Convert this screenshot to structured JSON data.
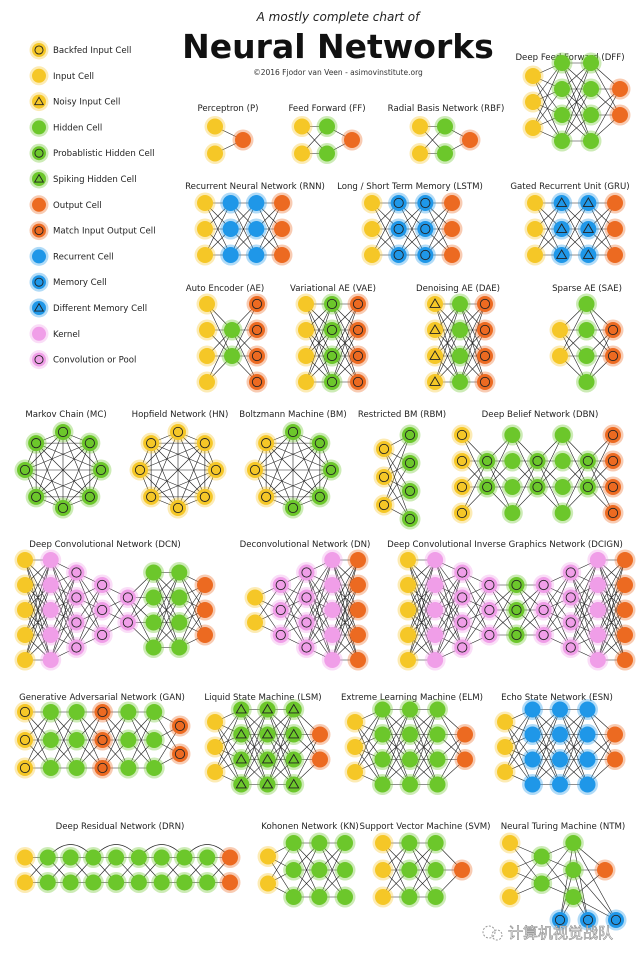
{
  "header": {
    "subtitle": "A mostly complete chart of",
    "title": "Neural Networks",
    "credit": "©2016 Fjodor van Veen - asimovinstitute.org"
  },
  "cell_colors": {
    "yellow": "#f5c727",
    "green": "#6cc72b",
    "orange": "#ec6a21",
    "blue": "#1f97e8",
    "pink": "#f09ee8",
    "edge": "#222222"
  },
  "legend": [
    {
      "label": "Backfed Input Cell",
      "type": "bi"
    },
    {
      "label": "Input Cell",
      "type": "in"
    },
    {
      "label": "Noisy Input Cell",
      "type": "ni"
    },
    {
      "label": "Hidden Cell",
      "type": "h"
    },
    {
      "label": "Probablistic Hidden Cell",
      "type": "ph"
    },
    {
      "label": "Spiking Hidden Cell",
      "type": "sh"
    },
    {
      "label": "Output Cell",
      "type": "o"
    },
    {
      "label": "Match Input Output Cell",
      "type": "mo"
    },
    {
      "label": "Recurrent Cell",
      "type": "r"
    },
    {
      "label": "Memory Cell",
      "type": "m"
    },
    {
      "label": "Different Memory Cell",
      "type": "dm"
    },
    {
      "label": "Kernel",
      "type": "k"
    },
    {
      "label": "Convolution or Pool",
      "type": "c"
    }
  ],
  "networks": [
    {
      "id": "p",
      "name": "Perceptron (P)",
      "layers": [
        [
          "in",
          "in"
        ],
        [
          "o"
        ]
      ]
    },
    {
      "id": "ff",
      "name": "Feed Forward (FF)",
      "layers": [
        [
          "in",
          "in"
        ],
        [
          "h",
          "h"
        ],
        [
          "o"
        ]
      ]
    },
    {
      "id": "rbf",
      "name": "Radial Basis Network (RBF)",
      "layers": [
        [
          "in",
          "in"
        ],
        [
          "h",
          "h"
        ],
        [
          "o"
        ]
      ]
    },
    {
      "id": "dff",
      "name": "Deep Feed Forward (DFF)",
      "layers": [
        [
          "in",
          "in",
          "in"
        ],
        [
          "h",
          "h",
          "h",
          "h"
        ],
        [
          "h",
          "h",
          "h",
          "h"
        ],
        [
          "o",
          "o"
        ]
      ]
    },
    {
      "id": "rnn",
      "name": "Recurrent Neural Network (RNN)",
      "layers": [
        [
          "in",
          "in",
          "in"
        ],
        [
          "r",
          "r",
          "r"
        ],
        [
          "r",
          "r",
          "r"
        ],
        [
          "o",
          "o",
          "o"
        ]
      ]
    },
    {
      "id": "lstm",
      "name": "Long / Short Term Memory (LSTM)",
      "layers": [
        [
          "in",
          "in",
          "in"
        ],
        [
          "m",
          "m",
          "m"
        ],
        [
          "m",
          "m",
          "m"
        ],
        [
          "o",
          "o",
          "o"
        ]
      ]
    },
    {
      "id": "gru",
      "name": "Gated Recurrent Unit (GRU)",
      "layers": [
        [
          "in",
          "in",
          "in"
        ],
        [
          "dm",
          "dm",
          "dm"
        ],
        [
          "dm",
          "dm",
          "dm"
        ],
        [
          "o",
          "o",
          "o"
        ]
      ]
    },
    {
      "id": "ae",
      "name": "Auto Encoder (AE)",
      "layers": [
        [
          "in",
          "in",
          "in",
          "in"
        ],
        [
          "h",
          "h"
        ],
        [
          "mo",
          "mo",
          "mo",
          "mo"
        ]
      ]
    },
    {
      "id": "vae",
      "name": "Variational AE (VAE)",
      "layers": [
        [
          "in",
          "in",
          "in",
          "in"
        ],
        [
          "ph",
          "ph",
          "ph",
          "ph"
        ],
        [
          "mo",
          "mo",
          "mo",
          "mo"
        ]
      ]
    },
    {
      "id": "dae",
      "name": "Denoising AE (DAE)",
      "layers": [
        [
          "ni",
          "ni",
          "ni",
          "ni"
        ],
        [
          "h",
          "h",
          "h",
          "h"
        ],
        [
          "mo",
          "mo",
          "mo",
          "mo"
        ]
      ]
    },
    {
      "id": "sae",
      "name": "Sparse AE (SAE)",
      "layers": [
        [
          "in",
          "in"
        ],
        [
          "h",
          "h",
          "h",
          "h"
        ],
        [
          "mo",
          "mo"
        ]
      ]
    },
    {
      "id": "mc",
      "name": "Markov Chain (MC)",
      "ring": [
        "ph",
        "ph",
        "ph",
        "ph",
        "ph",
        "ph",
        "ph",
        "ph"
      ]
    },
    {
      "id": "hn",
      "name": "Hopfield Network (HN)",
      "ring": [
        "bi",
        "bi",
        "bi",
        "bi",
        "bi",
        "bi",
        "bi",
        "bi"
      ]
    },
    {
      "id": "bm",
      "name": "Boltzmann Machine (BM)",
      "ring": [
        "ph",
        "ph",
        "ph",
        "ph",
        "ph",
        "bi",
        "bi",
        "bi"
      ]
    },
    {
      "id": "rbm",
      "name": "Restricted BM (RBM)",
      "layers": [
        [
          "bi",
          "bi",
          "bi"
        ],
        [
          "ph",
          "ph",
          "ph",
          "ph"
        ]
      ]
    },
    {
      "id": "dbn",
      "name": "Deep Belief Network (DBN)",
      "layers": [
        [
          "bi",
          "bi",
          "bi",
          "bi"
        ],
        [
          "ph",
          "ph"
        ],
        [
          "h",
          "h",
          "h",
          "h"
        ],
        [
          "ph",
          "ph"
        ],
        [
          "h",
          "h",
          "h",
          "h"
        ],
        [
          "ph",
          "ph"
        ],
        [
          "mo",
          "mo",
          "mo",
          "mo"
        ]
      ]
    },
    {
      "id": "dcn",
      "name": "Deep Convolutional Network (DCN)",
      "layers": [
        [
          "in",
          "in",
          "in",
          "in",
          "in"
        ],
        [
          "k",
          "k",
          "k",
          "k",
          "k"
        ],
        [
          "c",
          "c",
          "c",
          "c"
        ],
        [
          "c",
          "c",
          "c"
        ],
        [
          "c",
          "c"
        ],
        [
          "h",
          "h",
          "h",
          "h"
        ],
        [
          "h",
          "h",
          "h",
          "h"
        ],
        [
          "o",
          "o",
          "o"
        ]
      ]
    },
    {
      "id": "dn",
      "name": "Deconvolutional Network (DN)",
      "layers": [
        [
          "in",
          "in"
        ],
        [
          "c",
          "c",
          "c"
        ],
        [
          "c",
          "c",
          "c",
          "c"
        ],
        [
          "k",
          "k",
          "k",
          "k",
          "k"
        ],
        [
          "o",
          "o",
          "o",
          "o",
          "o"
        ]
      ]
    },
    {
      "id": "dcign",
      "name": "Deep Convolutional Inverse Graphics Network (DCIGN)",
      "layers": [
        [
          "in",
          "in",
          "in",
          "in",
          "in"
        ],
        [
          "k",
          "k",
          "k",
          "k",
          "k"
        ],
        [
          "c",
          "c",
          "c",
          "c"
        ],
        [
          "c",
          "c",
          "c"
        ],
        [
          "ph",
          "ph",
          "ph"
        ],
        [
          "c",
          "c",
          "c"
        ],
        [
          "c",
          "c",
          "c",
          "c"
        ],
        [
          "k",
          "k",
          "k",
          "k",
          "k"
        ],
        [
          "o",
          "o",
          "o",
          "o",
          "o"
        ]
      ]
    },
    {
      "id": "gan",
      "name": "Generative Adversarial Network (GAN)",
      "layers": [
        [
          "bi",
          "bi",
          "bi"
        ],
        [
          "h",
          "h",
          "h"
        ],
        [
          "h",
          "h",
          "h"
        ],
        [
          "mo",
          "mo",
          "mo"
        ],
        [
          "h",
          "h",
          "h"
        ],
        [
          "h",
          "h",
          "h"
        ],
        [
          "mo",
          "mo"
        ]
      ]
    },
    {
      "id": "lsm",
      "name": "Liquid State Machine (LSM)",
      "layers": [
        [
          "in",
          "in",
          "in"
        ],
        [
          "sh",
          "sh",
          "sh",
          "sh"
        ],
        [
          "sh",
          "sh",
          "sh",
          "sh"
        ],
        [
          "sh",
          "sh",
          "sh",
          "sh"
        ],
        [
          "o",
          "o"
        ]
      ]
    },
    {
      "id": "elm",
      "name": "Extreme Learning Machine (ELM)",
      "layers": [
        [
          "in",
          "in",
          "in"
        ],
        [
          "h",
          "h",
          "h",
          "h"
        ],
        [
          "h",
          "h",
          "h",
          "h"
        ],
        [
          "h",
          "h",
          "h",
          "h"
        ],
        [
          "o",
          "o"
        ]
      ]
    },
    {
      "id": "esn",
      "name": "Echo State Network (ESN)",
      "layers": [
        [
          "in",
          "in",
          "in"
        ],
        [
          "r",
          "r",
          "r",
          "r"
        ],
        [
          "r",
          "r",
          "r",
          "r"
        ],
        [
          "r",
          "r",
          "r",
          "r"
        ],
        [
          "o",
          "o"
        ]
      ]
    },
    {
      "id": "drn",
      "name": "Deep Residual Network (DRN)",
      "layers": [
        [
          "in",
          "in"
        ],
        [
          "h",
          "h"
        ],
        [
          "h",
          "h"
        ],
        [
          "h",
          "h"
        ],
        [
          "h",
          "h"
        ],
        [
          "h",
          "h"
        ],
        [
          "h",
          "h"
        ],
        [
          "h",
          "h"
        ],
        [
          "h",
          "h"
        ],
        [
          "o",
          "o"
        ]
      ]
    },
    {
      "id": "kn",
      "name": "Kohonen Network (KN)",
      "layers": [
        [
          "in",
          "in"
        ],
        [
          "h",
          "h",
          "h"
        ],
        [
          "h",
          "h",
          "h"
        ],
        [
          "h",
          "h",
          "h"
        ]
      ]
    },
    {
      "id": "svm",
      "name": "Support Vector Machine (SVM)",
      "layers": [
        [
          "in",
          "in",
          "in"
        ],
        [
          "h",
          "h",
          "h"
        ],
        [
          "h",
          "h",
          "h"
        ],
        [
          "o"
        ]
      ]
    },
    {
      "id": "ntm",
      "name": "Neural Turing Machine (NTM)",
      "layers": [
        [
          "in",
          "in",
          "in"
        ],
        [
          "h",
          "h"
        ],
        [
          "h",
          "h",
          "h"
        ],
        [
          "o"
        ]
      ],
      "memory": [
        "m",
        "m",
        "m"
      ]
    }
  ],
  "watermark": "计算机视觉战队"
}
